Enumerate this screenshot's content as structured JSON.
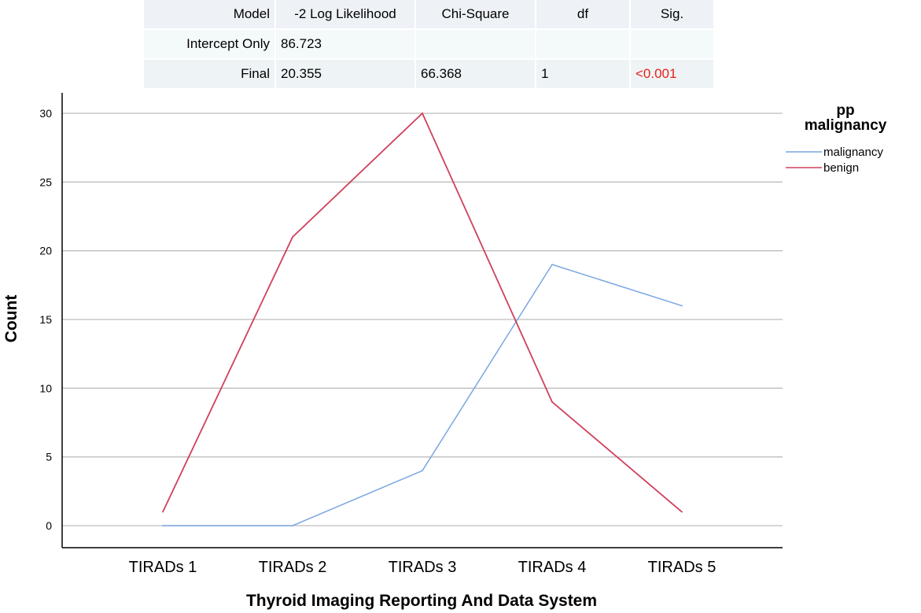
{
  "table": {
    "headers": [
      "Model",
      "-2 Log Likelihood",
      "Chi-Square",
      "df",
      "Sig."
    ],
    "rows": [
      [
        "Intercept Only",
        "86.723",
        "",
        "",
        ""
      ],
      [
        "Final",
        "20.355",
        "66.368",
        "1",
        "<0.001"
      ]
    ],
    "sig_color": "#e8211b"
  },
  "chart_data": {
    "type": "line",
    "title": "",
    "xlabel": "Thyroid Imaging Reporting And Data System",
    "ylabel": "Count",
    "categories": [
      "TIRADs 1",
      "TIRADs 2",
      "TIRADs 3",
      "TIRADs 4",
      "TIRADs 5"
    ],
    "ylim": [
      0,
      30
    ],
    "yticks": [
      0,
      5,
      10,
      15,
      20,
      25,
      30
    ],
    "grid": true,
    "legend_title": "pp malignancy",
    "legend_title_lines": [
      "pp",
      "malignancy"
    ],
    "legend_position": "top-right",
    "series": [
      {
        "name": "malignancy",
        "color": "#7aa6e2",
        "values": [
          0,
          0,
          4,
          19,
          16
        ]
      },
      {
        "name": "benign",
        "color": "#d0405c",
        "values": [
          1,
          21,
          30,
          9,
          1
        ]
      }
    ]
  }
}
